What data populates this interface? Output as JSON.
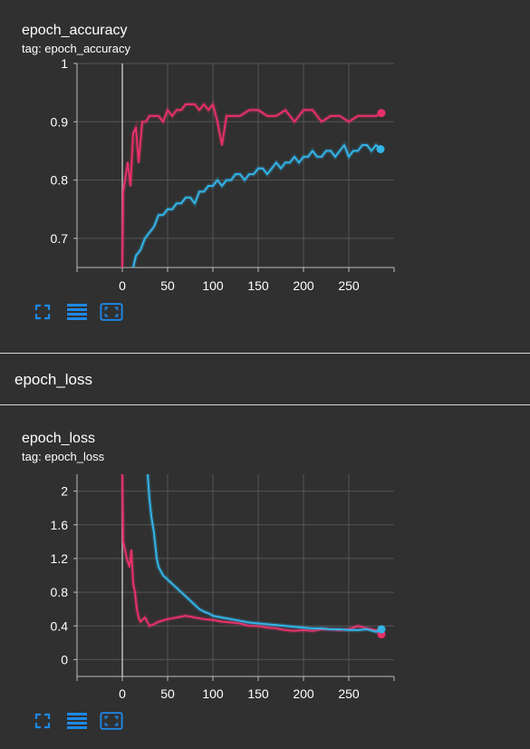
{
  "colors": {
    "train": "#e8306a",
    "validation": "#32b4e8",
    "grid": "#555555",
    "axis": "#bbbbbb",
    "accent": "#1e88e5"
  },
  "section": {
    "title": "epoch_loss"
  },
  "toolbar_icons": [
    "fullscreen-icon",
    "data-table-icon",
    "fit-domain-icon"
  ],
  "cards": [
    {
      "title": "epoch_accuracy",
      "tag": "tag: epoch_accuracy"
    },
    {
      "title": "epoch_loss",
      "tag": "tag: epoch_loss"
    }
  ],
  "chart_data": [
    {
      "type": "line",
      "xlim": [
        -50,
        300
      ],
      "ylim": [
        0.65,
        1.0
      ],
      "x_ticks": [
        "0",
        "50",
        "100",
        "150",
        "200",
        "250"
      ],
      "y_ticks": [
        "0.7",
        "0.8",
        "0.9",
        "1"
      ],
      "grid": true,
      "series": [
        {
          "color": "#e8306a",
          "x": [
            0,
            1,
            3,
            6,
            9,
            12,
            15,
            18,
            22,
            26,
            30,
            35,
            40,
            45,
            50,
            55,
            60,
            65,
            70,
            75,
            80,
            85,
            90,
            95,
            100,
            105,
            110,
            115,
            120,
            130,
            140,
            150,
            160,
            170,
            180,
            190,
            200,
            210,
            220,
            230,
            240,
            250,
            260,
            270,
            280,
            286
          ],
          "y": [
            0.65,
            0.78,
            0.8,
            0.83,
            0.79,
            0.88,
            0.89,
            0.83,
            0.9,
            0.9,
            0.91,
            0.91,
            0.91,
            0.9,
            0.92,
            0.91,
            0.92,
            0.92,
            0.93,
            0.93,
            0.93,
            0.92,
            0.93,
            0.92,
            0.93,
            0.9,
            0.86,
            0.91,
            0.91,
            0.91,
            0.92,
            0.92,
            0.91,
            0.91,
            0.92,
            0.9,
            0.92,
            0.92,
            0.9,
            0.91,
            0.91,
            0.9,
            0.91,
            0.91,
            0.91,
            0.915
          ]
        },
        {
          "color": "#32b4e8",
          "x": [
            12,
            15,
            20,
            25,
            30,
            35,
            40,
            45,
            50,
            55,
            60,
            65,
            70,
            75,
            80,
            85,
            90,
            95,
            100,
            105,
            110,
            115,
            120,
            125,
            130,
            135,
            140,
            145,
            150,
            155,
            160,
            165,
            170,
            175,
            180,
            185,
            190,
            195,
            200,
            205,
            210,
            215,
            220,
            225,
            230,
            235,
            240,
            245,
            250,
            255,
            260,
            265,
            270,
            275,
            280,
            285
          ],
          "y": [
            0.65,
            0.67,
            0.68,
            0.7,
            0.71,
            0.72,
            0.74,
            0.74,
            0.75,
            0.75,
            0.76,
            0.76,
            0.77,
            0.77,
            0.76,
            0.78,
            0.78,
            0.79,
            0.79,
            0.8,
            0.79,
            0.8,
            0.8,
            0.81,
            0.81,
            0.8,
            0.81,
            0.81,
            0.82,
            0.82,
            0.81,
            0.82,
            0.83,
            0.82,
            0.83,
            0.83,
            0.84,
            0.83,
            0.84,
            0.84,
            0.85,
            0.84,
            0.84,
            0.85,
            0.85,
            0.84,
            0.85,
            0.86,
            0.84,
            0.85,
            0.85,
            0.86,
            0.86,
            0.85,
            0.86,
            0.853
          ]
        }
      ]
    },
    {
      "type": "line",
      "xlim": [
        -50,
        300
      ],
      "ylim": [
        -0.2,
        2.2
      ],
      "x_ticks": [
        "0",
        "50",
        "100",
        "150",
        "200",
        "250"
      ],
      "y_ticks": [
        "0",
        "0.4",
        "0.8",
        "1.2",
        "1.6",
        "2"
      ],
      "grid": true,
      "series": [
        {
          "color": "#e8306a",
          "x": [
            0,
            1,
            3,
            5,
            8,
            10,
            12,
            14,
            16,
            18,
            20,
            25,
            30,
            35,
            40,
            50,
            60,
            70,
            80,
            90,
            100,
            110,
            120,
            130,
            140,
            150,
            160,
            170,
            180,
            190,
            200,
            210,
            220,
            230,
            240,
            250,
            260,
            270,
            280,
            286
          ],
          "y": [
            2.2,
            1.4,
            1.3,
            1.2,
            1.1,
            1.3,
            0.9,
            0.8,
            0.6,
            0.5,
            0.45,
            0.5,
            0.4,
            0.42,
            0.45,
            0.48,
            0.5,
            0.52,
            0.5,
            0.48,
            0.47,
            0.45,
            0.44,
            0.43,
            0.4,
            0.4,
            0.38,
            0.37,
            0.35,
            0.34,
            0.35,
            0.34,
            0.36,
            0.36,
            0.35,
            0.36,
            0.4,
            0.37,
            0.35,
            0.3
          ]
        },
        {
          "color": "#32b4e8",
          "x": [
            28,
            30,
            32,
            35,
            38,
            40,
            45,
            50,
            55,
            60,
            65,
            70,
            75,
            80,
            85,
            90,
            95,
            100,
            110,
            120,
            130,
            140,
            150,
            160,
            170,
            180,
            190,
            200,
            210,
            220,
            230,
            240,
            250,
            260,
            270,
            280,
            286
          ],
          "y": [
            2.2,
            1.9,
            1.7,
            1.5,
            1.2,
            1.1,
            1.0,
            0.95,
            0.9,
            0.85,
            0.8,
            0.75,
            0.7,
            0.65,
            0.6,
            0.57,
            0.55,
            0.52,
            0.5,
            0.48,
            0.46,
            0.44,
            0.43,
            0.42,
            0.41,
            0.4,
            0.39,
            0.38,
            0.37,
            0.37,
            0.36,
            0.36,
            0.35,
            0.35,
            0.36,
            0.33,
            0.36
          ]
        }
      ]
    }
  ]
}
